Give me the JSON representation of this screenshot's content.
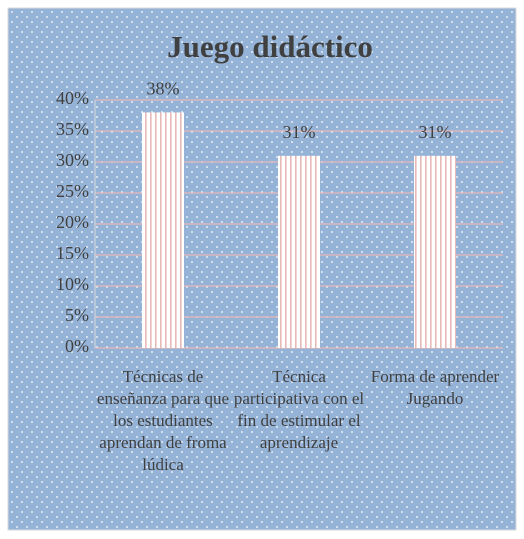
{
  "chart_data": {
    "type": "bar",
    "title": "Juego didáctico",
    "categories": [
      "Técnicas de enseñanza para que los estudiantes aprendan de froma lúdica",
      "Técnica participativa con el fin de estimular el aprendizaje",
      "Forma de aprender Jugando"
    ],
    "values": [
      38,
      31,
      31
    ],
    "value_labels": [
      "38%",
      "31%",
      "31%"
    ],
    "color": "#e6b9b8",
    "ylim": [
      0,
      40
    ],
    "yticks": [
      {
        "value": 0,
        "label": "0%"
      },
      {
        "value": 5,
        "label": "5%"
      },
      {
        "value": 10,
        "label": "10%"
      },
      {
        "value": 15,
        "label": "15%"
      },
      {
        "value": 20,
        "label": "20%"
      },
      {
        "value": 25,
        "label": "25%"
      },
      {
        "value": 30,
        "label": "30%"
      },
      {
        "value": 35,
        "label": "35%"
      },
      {
        "value": 40,
        "label": "40%"
      }
    ],
    "grid": true
  }
}
